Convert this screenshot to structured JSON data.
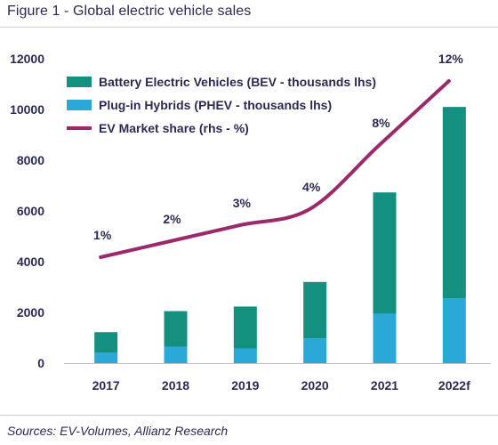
{
  "figure": {
    "title": "Figure 1 - Global electric vehicle sales",
    "source": "Sources: EV-Volumes, Allianz Research"
  },
  "chart_data": {
    "type": "bar",
    "stacked": true,
    "categories": [
      "2017",
      "2018",
      "2019",
      "2020",
      "2021",
      "2022f"
    ],
    "series": [
      {
        "name": "Plug-in Hybrids (PHEV - thousands lhs)",
        "kind": "bar",
        "axis": "left",
        "color": "#2aa8d8",
        "values": [
          420,
          650,
          580,
          980,
          1950,
          2550
        ]
      },
      {
        "name": "Battery Electric Vehicles (BEV - thousands lhs)",
        "kind": "bar",
        "axis": "left",
        "color": "#13907f",
        "values": [
          800,
          1400,
          1650,
          2220,
          4780,
          7550
        ]
      },
      {
        "name": "EV Market share (rhs - %)",
        "kind": "line",
        "axis": "right",
        "color": "#9c2a6a",
        "values": [
          1,
          2,
          3,
          4,
          8,
          12
        ],
        "labels": [
          "1%",
          "2%",
          "3%",
          "4%",
          "8%",
          "12%"
        ]
      }
    ],
    "legend_order": [
      "Battery Electric Vehicles (BEV - thousands lhs)",
      "Plug-in Hybrids (PHEV - thousands lhs)",
      "EV Market share (rhs - %)"
    ],
    "ylim": [
      0,
      12000
    ],
    "yticks": [
      "0",
      "2000",
      "4000",
      "6000",
      "8000",
      "10000",
      "12000"
    ],
    "y2_shown": false,
    "legend_position": "top-left",
    "grid": false
  }
}
